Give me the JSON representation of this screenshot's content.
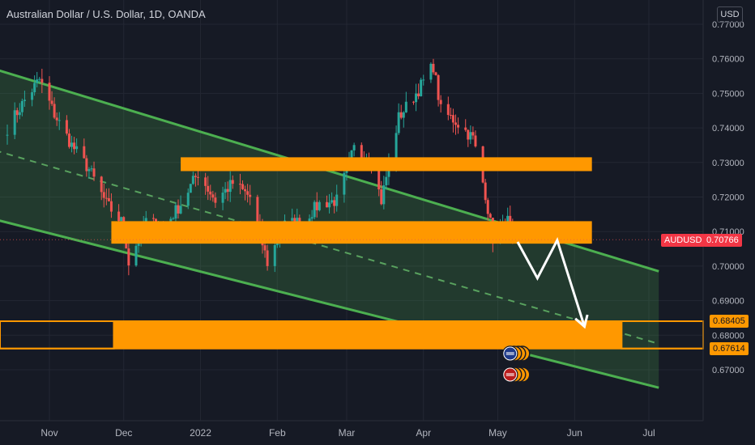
{
  "header": {
    "title": "Australian Dollar / U.S. Dollar, 1D, OANDA",
    "currency": "USD"
  },
  "labels": {
    "symbol": "AUDUSD",
    "last_price": "0.70766",
    "upper_level": "0.68405",
    "lower_level": "0.67614"
  },
  "colors": {
    "background": "#161a25",
    "grid": "#232733",
    "bull": "#26a69a",
    "bear": "#ef5350",
    "zone": "#ff9800",
    "channel": "#4caf50",
    "channel_fill": "rgba(76,175,80,0.22)",
    "arrow": "#ffffff",
    "axis_text": "#b2b5be"
  },
  "chart_data": {
    "type": "candlestick",
    "title": "Australian Dollar / U.S. Dollar, 1D, OANDA",
    "symbol": "AUDUSD",
    "ylim": [
      0.665,
      0.7725
    ],
    "y_ticks": [
      0.67,
      0.68,
      0.69,
      0.7,
      0.71,
      0.72,
      0.73,
      0.74,
      0.75,
      0.76,
      0.77
    ],
    "y_tick_labels": [
      "0.67000",
      "0.68000",
      "0.69000",
      "0.70000",
      "0.71000",
      "0.72000",
      "0.73000",
      "0.74000",
      "0.75000",
      "0.76000",
      "0.77000"
    ],
    "x_ticks": [
      {
        "label": "Nov",
        "date": "2021-11-01"
      },
      {
        "label": "Dec",
        "date": "2021-12-01"
      },
      {
        "label": "2022",
        "date": "2022-01-01"
      },
      {
        "label": "Feb",
        "date": "2022-02-01"
      },
      {
        "label": "Mar",
        "date": "2022-03-01"
      },
      {
        "label": "Apr",
        "date": "2022-04-01"
      },
      {
        "label": "May",
        "date": "2022-05-01"
      },
      {
        "label": "Jun",
        "date": "2022-06-01"
      },
      {
        "label": "Jul",
        "date": "2022-07-01"
      }
    ],
    "closes": [
      {
        "date": "2021-10-15",
        "close": 0.74
      },
      {
        "date": "2021-10-22",
        "close": 0.748
      },
      {
        "date": "2021-10-28",
        "close": 0.754
      },
      {
        "date": "2021-11-03",
        "close": 0.744
      },
      {
        "date": "2021-11-10",
        "close": 0.735
      },
      {
        "date": "2021-11-17",
        "close": 0.728
      },
      {
        "date": "2021-11-24",
        "close": 0.718
      },
      {
        "date": "2021-12-01",
        "close": 0.712
      },
      {
        "date": "2021-12-03",
        "close": 0.701
      },
      {
        "date": "2021-12-10",
        "close": 0.713
      },
      {
        "date": "2021-12-17",
        "close": 0.711
      },
      {
        "date": "2021-12-24",
        "close": 0.718
      },
      {
        "date": "2021-12-31",
        "close": 0.727
      },
      {
        "date": "2022-01-07",
        "close": 0.719
      },
      {
        "date": "2022-01-14",
        "close": 0.724
      },
      {
        "date": "2022-01-21",
        "close": 0.72
      },
      {
        "date": "2022-01-28",
        "close": 0.701
      },
      {
        "date": "2022-02-04",
        "close": 0.712
      },
      {
        "date": "2022-02-11",
        "close": 0.713
      },
      {
        "date": "2022-02-18",
        "close": 0.718
      },
      {
        "date": "2022-02-25",
        "close": 0.719
      },
      {
        "date": "2022-03-04",
        "close": 0.734
      },
      {
        "date": "2022-03-11",
        "close": 0.73
      },
      {
        "date": "2022-03-15",
        "close": 0.719
      },
      {
        "date": "2022-03-22",
        "close": 0.743
      },
      {
        "date": "2022-03-29",
        "close": 0.75
      },
      {
        "date": "2022-04-05",
        "close": 0.758
      },
      {
        "date": "2022-04-08",
        "close": 0.745
      },
      {
        "date": "2022-04-14",
        "close": 0.742
      },
      {
        "date": "2022-04-21",
        "close": 0.737
      },
      {
        "date": "2022-04-26",
        "close": 0.721
      },
      {
        "date": "2022-04-29",
        "close": 0.708
      },
      {
        "date": "2022-05-03",
        "close": 0.711
      },
      {
        "date": "2022-05-05",
        "close": 0.713
      },
      {
        "date": "2022-05-07",
        "close": 0.7077
      }
    ],
    "last_price": 0.70766,
    "zones": [
      {
        "y1": 0.7275,
        "y2": 0.7315,
        "from": "2021-12-24",
        "to": "2022-06-08"
      },
      {
        "y1": 0.7065,
        "y2": 0.713,
        "from": "2021-11-26",
        "to": "2022-06-08"
      },
      {
        "y1": 0.67614,
        "y2": 0.68405,
        "from": "2021-11-27",
        "to": "2022-06-20"
      }
    ],
    "channel": {
      "upper": [
        {
          "date": "2021-10-10",
          "y": 0.757
        },
        {
          "date": "2022-07-05",
          "y": 0.6985
        }
      ],
      "middle": [
        {
          "date": "2021-10-10",
          "y": 0.7335
        },
        {
          "date": "2022-07-05",
          "y": 0.6775
        }
      ],
      "lower": [
        {
          "date": "2021-10-10",
          "y": 0.7135
        },
        {
          "date": "2022-07-05",
          "y": 0.6648
        }
      ]
    },
    "projection": [
      {
        "date": "2022-05-09",
        "y": 0.707
      },
      {
        "date": "2022-05-17",
        "y": 0.6965
      },
      {
        "date": "2022-05-25",
        "y": 0.7075
      },
      {
        "date": "2022-06-05",
        "y": 0.6825
      }
    ]
  }
}
